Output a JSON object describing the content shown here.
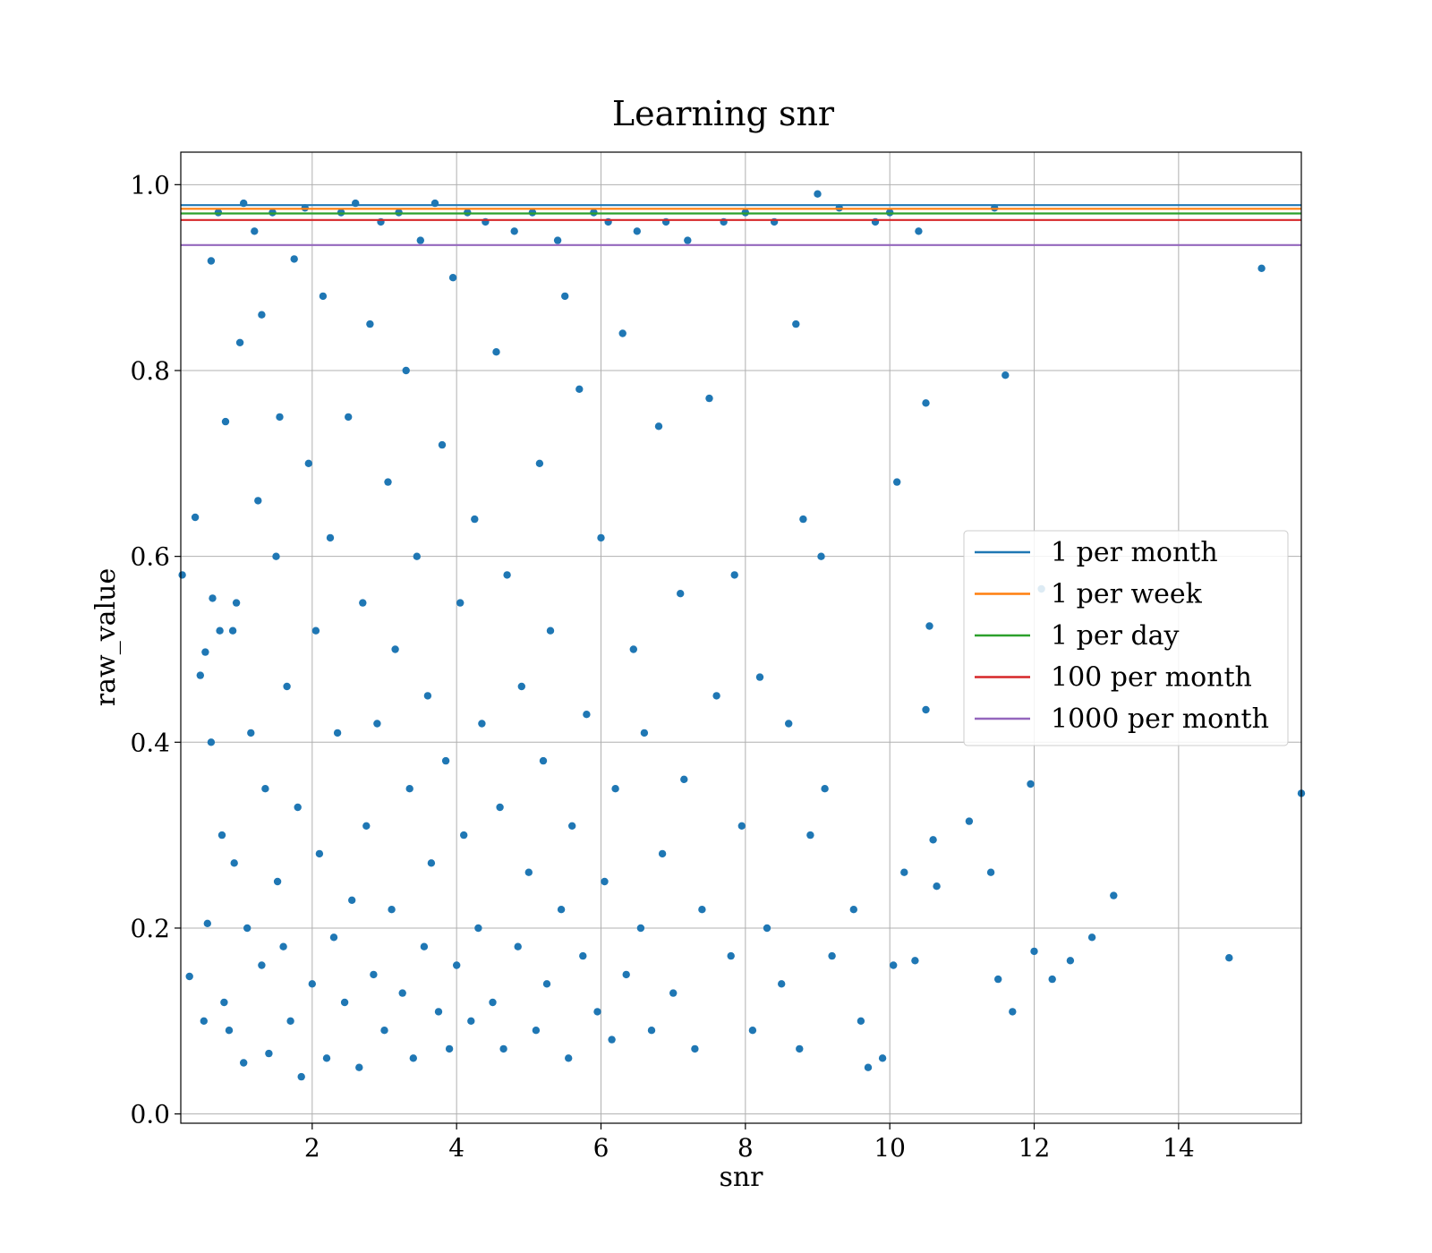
{
  "chart_data": {
    "type": "scatter",
    "title": "Learning snr",
    "xlabel": "snr",
    "ylabel": "raw_value",
    "xlim": [
      0.18,
      15.7
    ],
    "ylim": [
      -0.01,
      1.035
    ],
    "xticks": [
      2,
      4,
      6,
      8,
      10,
      12,
      14
    ],
    "yticks": [
      0.0,
      0.2,
      0.4,
      0.6,
      0.8,
      1.0
    ],
    "xtick_labels": [
      "2",
      "4",
      "6",
      "8",
      "10",
      "12",
      "14"
    ],
    "ytick_labels": [
      "0.0",
      "0.2",
      "0.4",
      "0.6",
      "0.8",
      "1.0"
    ],
    "grid": true,
    "legend_position": "center-right",
    "marker_color": "#1f77b4",
    "points": [
      [
        0.2,
        0.58
      ],
      [
        0.3,
        0.148
      ],
      [
        0.38,
        0.642
      ],
      [
        0.45,
        0.472
      ],
      [
        0.5,
        0.1
      ],
      [
        0.52,
        0.497
      ],
      [
        0.55,
        0.205
      ],
      [
        0.6,
        0.918
      ],
      [
        0.6,
        0.4
      ],
      [
        0.62,
        0.555
      ],
      [
        0.7,
        0.97
      ],
      [
        0.72,
        0.52
      ],
      [
        0.75,
        0.3
      ],
      [
        0.78,
        0.12
      ],
      [
        0.8,
        0.745
      ],
      [
        0.85,
        0.09
      ],
      [
        0.9,
        0.52
      ],
      [
        0.92,
        0.27
      ],
      [
        0.95,
        0.55
      ],
      [
        1.0,
        0.83
      ],
      [
        1.05,
        0.98
      ],
      [
        1.05,
        0.055
      ],
      [
        1.1,
        0.2
      ],
      [
        1.15,
        0.41
      ],
      [
        1.2,
        0.95
      ],
      [
        1.25,
        0.66
      ],
      [
        1.3,
        0.86
      ],
      [
        1.3,
        0.16
      ],
      [
        1.35,
        0.35
      ],
      [
        1.4,
        0.065
      ],
      [
        1.45,
        0.97
      ],
      [
        1.5,
        0.6
      ],
      [
        1.52,
        0.25
      ],
      [
        1.55,
        0.75
      ],
      [
        1.6,
        0.18
      ],
      [
        1.65,
        0.46
      ],
      [
        1.7,
        0.1
      ],
      [
        1.75,
        0.92
      ],
      [
        1.8,
        0.33
      ],
      [
        1.85,
        0.04
      ],
      [
        1.9,
        0.975
      ],
      [
        1.95,
        0.7
      ],
      [
        2.0,
        0.14
      ],
      [
        2.05,
        0.52
      ],
      [
        2.1,
        0.28
      ],
      [
        2.15,
        0.88
      ],
      [
        2.2,
        0.06
      ],
      [
        2.25,
        0.62
      ],
      [
        2.3,
        0.19
      ],
      [
        2.35,
        0.41
      ],
      [
        2.4,
        0.97
      ],
      [
        2.45,
        0.12
      ],
      [
        2.5,
        0.75
      ],
      [
        2.55,
        0.23
      ],
      [
        2.6,
        0.98
      ],
      [
        2.65,
        0.05
      ],
      [
        2.7,
        0.55
      ],
      [
        2.75,
        0.31
      ],
      [
        2.8,
        0.85
      ],
      [
        2.85,
        0.15
      ],
      [
        2.9,
        0.42
      ],
      [
        2.95,
        0.96
      ],
      [
        3.0,
        0.09
      ],
      [
        3.05,
        0.68
      ],
      [
        3.1,
        0.22
      ],
      [
        3.15,
        0.5
      ],
      [
        3.2,
        0.97
      ],
      [
        3.25,
        0.13
      ],
      [
        3.3,
        0.8
      ],
      [
        3.35,
        0.35
      ],
      [
        3.4,
        0.06
      ],
      [
        3.45,
        0.6
      ],
      [
        3.5,
        0.94
      ],
      [
        3.55,
        0.18
      ],
      [
        3.6,
        0.45
      ],
      [
        3.65,
        0.27
      ],
      [
        3.7,
        0.98
      ],
      [
        3.75,
        0.11
      ],
      [
        3.8,
        0.72
      ],
      [
        3.85,
        0.38
      ],
      [
        3.9,
        0.07
      ],
      [
        3.95,
        0.9
      ],
      [
        4.0,
        0.16
      ],
      [
        4.05,
        0.55
      ],
      [
        4.1,
        0.3
      ],
      [
        4.15,
        0.97
      ],
      [
        4.2,
        0.1
      ],
      [
        4.25,
        0.64
      ],
      [
        4.3,
        0.2
      ],
      [
        4.35,
        0.42
      ],
      [
        4.4,
        0.96
      ],
      [
        4.5,
        0.12
      ],
      [
        4.55,
        0.82
      ],
      [
        4.6,
        0.33
      ],
      [
        4.65,
        0.07
      ],
      [
        4.7,
        0.58
      ],
      [
        4.8,
        0.95
      ],
      [
        4.85,
        0.18
      ],
      [
        4.9,
        0.46
      ],
      [
        5.0,
        0.26
      ],
      [
        5.05,
        0.97
      ],
      [
        5.1,
        0.09
      ],
      [
        5.15,
        0.7
      ],
      [
        5.2,
        0.38
      ],
      [
        5.25,
        0.14
      ],
      [
        5.3,
        0.52
      ],
      [
        5.4,
        0.94
      ],
      [
        5.45,
        0.22
      ],
      [
        5.5,
        0.88
      ],
      [
        5.55,
        0.06
      ],
      [
        5.6,
        0.31
      ],
      [
        5.7,
        0.78
      ],
      [
        5.75,
        0.17
      ],
      [
        5.8,
        0.43
      ],
      [
        5.9,
        0.97
      ],
      [
        5.95,
        0.11
      ],
      [
        6.0,
        0.62
      ],
      [
        6.05,
        0.25
      ],
      [
        6.1,
        0.96
      ],
      [
        6.15,
        0.08
      ],
      [
        6.2,
        0.35
      ],
      [
        6.3,
        0.84
      ],
      [
        6.35,
        0.15
      ],
      [
        6.45,
        0.5
      ],
      [
        6.5,
        0.95
      ],
      [
        6.55,
        0.2
      ],
      [
        6.6,
        0.41
      ],
      [
        6.7,
        0.09
      ],
      [
        6.8,
        0.74
      ],
      [
        6.85,
        0.28
      ],
      [
        6.9,
        0.96
      ],
      [
        7.0,
        0.13
      ],
      [
        7.1,
        0.56
      ],
      [
        7.15,
        0.36
      ],
      [
        7.2,
        0.94
      ],
      [
        7.3,
        0.07
      ],
      [
        7.4,
        0.22
      ],
      [
        7.5,
        0.77
      ],
      [
        7.6,
        0.45
      ],
      [
        7.7,
        0.96
      ],
      [
        7.8,
        0.17
      ],
      [
        7.85,
        0.58
      ],
      [
        7.95,
        0.31
      ],
      [
        8.0,
        0.97
      ],
      [
        8.1,
        0.09
      ],
      [
        8.2,
        0.47
      ],
      [
        8.3,
        0.2
      ],
      [
        8.4,
        0.96
      ],
      [
        8.5,
        0.14
      ],
      [
        8.6,
        0.42
      ],
      [
        8.7,
        0.85
      ],
      [
        8.75,
        0.07
      ],
      [
        8.8,
        0.64
      ],
      [
        8.9,
        0.3
      ],
      [
        9.0,
        0.99
      ],
      [
        9.05,
        0.6
      ],
      [
        9.1,
        0.35
      ],
      [
        9.2,
        0.17
      ],
      [
        9.3,
        0.975
      ],
      [
        9.5,
        0.22
      ],
      [
        9.6,
        0.1
      ],
      [
        9.7,
        0.05
      ],
      [
        9.8,
        0.96
      ],
      [
        9.9,
        0.06
      ],
      [
        10.0,
        0.97
      ],
      [
        10.05,
        0.16
      ],
      [
        10.1,
        0.68
      ],
      [
        10.2,
        0.26
      ],
      [
        10.4,
        0.95
      ],
      [
        10.35,
        0.165
      ],
      [
        10.5,
        0.765
      ],
      [
        10.5,
        0.435
      ],
      [
        10.55,
        0.525
      ],
      [
        10.6,
        0.295
      ],
      [
        10.65,
        0.245
      ],
      [
        11.1,
        0.315
      ],
      [
        11.4,
        0.26
      ],
      [
        11.45,
        0.975
      ],
      [
        11.5,
        0.145
      ],
      [
        11.6,
        0.795
      ],
      [
        11.7,
        0.11
      ],
      [
        11.95,
        0.355
      ],
      [
        12.0,
        0.175
      ],
      [
        12.1,
        0.565
      ],
      [
        12.25,
        0.145
      ],
      [
        12.5,
        0.165
      ],
      [
        12.8,
        0.19
      ],
      [
        13.1,
        0.235
      ],
      [
        14.7,
        0.168
      ],
      [
        15.15,
        0.91
      ],
      [
        15.7,
        0.345
      ]
    ],
    "series": [
      {
        "name": "1 per month",
        "value": 0.978,
        "color": "#1f77b4"
      },
      {
        "name": "1 per week",
        "value": 0.974,
        "color": "#ff7f0e"
      },
      {
        "name": "1 per day",
        "value": 0.969,
        "color": "#2ca02c"
      },
      {
        "name": "100 per month",
        "value": 0.962,
        "color": "#d62728"
      },
      {
        "name": "1000 per month",
        "value": 0.935,
        "color": "#9467bd"
      }
    ]
  }
}
